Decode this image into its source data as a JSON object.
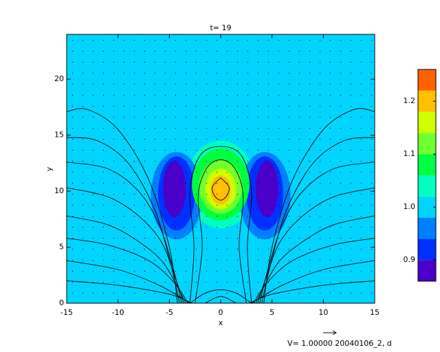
{
  "chart_data": {
    "type": "contour",
    "title": "t= 19",
    "xlabel": "x",
    "ylabel": "y",
    "footer": "V= 1.00000 20040106_2, d",
    "xlim": [
      -15,
      15
    ],
    "ylim": [
      0,
      24
    ],
    "xticks": [
      -15,
      -10,
      -5,
      0,
      5,
      10,
      15
    ],
    "yticks": [
      0,
      5,
      10,
      15,
      20
    ],
    "background_value": 1.0,
    "regions": [
      {
        "x": 0,
        "y": 10.6,
        "rx": 3.4,
        "ry": 3.9,
        "value": 1.04
      },
      {
        "x": -4.3,
        "y": 9.6,
        "rx": 2.5,
        "ry": 3.9,
        "value": 0.96
      },
      {
        "x": 4.3,
        "y": 9.6,
        "rx": 2.5,
        "ry": 3.9,
        "value": 0.96
      },
      {
        "x": -4.3,
        "y": 9.8,
        "rx": 1.8,
        "ry": 3.3,
        "value": 0.92
      },
      {
        "x": 4.3,
        "y": 9.8,
        "rx": 1.8,
        "ry": 3.3,
        "value": 0.92
      },
      {
        "x": -4.5,
        "y": 10.2,
        "rx": 1.1,
        "ry": 2.5,
        "value": 0.88
      },
      {
        "x": 4.5,
        "y": 10.2,
        "rx": 1.1,
        "ry": 2.5,
        "value": 0.88
      },
      {
        "x": 0,
        "y": 10.6,
        "rx": 2.8,
        "ry": 3.2,
        "value": 1.08
      },
      {
        "x": 0,
        "y": 10.4,
        "rx": 2.1,
        "ry": 2.4,
        "value": 1.12
      },
      {
        "x": 0,
        "y": 10.2,
        "rx": 1.5,
        "ry": 1.8,
        "value": 1.16
      },
      {
        "x": 0,
        "y": 10.1,
        "rx": 1.0,
        "ry": 1.3,
        "value": 1.2
      }
    ],
    "field_lines": [
      {
        "x": [
          -15,
          -13,
          -10,
          -7,
          -5,
          -4.2
        ],
        "y": [
          17.1,
          17.3,
          15.5,
          11,
          5,
          0
        ]
      },
      {
        "x": [
          -15,
          -12,
          -9,
          -6.5,
          -5,
          -4
        ],
        "y": [
          14.8,
          14.5,
          12.5,
          8.5,
          4,
          0
        ]
      },
      {
        "x": [
          -15,
          -11,
          -8,
          -6,
          -4.6,
          -3.8
        ],
        "y": [
          12.6,
          12,
          10,
          7,
          3,
          0
        ]
      },
      {
        "x": [
          -15,
          -11,
          -8,
          -5.8,
          -4.5,
          -3.6
        ],
        "y": [
          10.3,
          9.5,
          7.8,
          5.5,
          2.5,
          0
        ]
      },
      {
        "x": [
          -15,
          -11,
          -8,
          -5.5,
          -3.4
        ],
        "y": [
          7.8,
          7,
          5.5,
          3.5,
          0
        ]
      },
      {
        "x": [
          -15,
          -11,
          -7,
          -4.5,
          -3.2
        ],
        "y": [
          5.8,
          5.2,
          3.8,
          1.8,
          0
        ]
      },
      {
        "x": [
          -15,
          -10,
          -6,
          -3
        ],
        "y": [
          3.8,
          3,
          1.6,
          0
        ]
      },
      {
        "x": [
          -15,
          -10,
          -5,
          -2.8
        ],
        "y": [
          2,
          1.6,
          0.8,
          0
        ]
      },
      {
        "x": [
          15,
          13,
          10,
          7,
          5,
          4.2
        ],
        "y": [
          17.1,
          17.3,
          15.5,
          11,
          5,
          0
        ]
      },
      {
        "x": [
          15,
          12,
          9,
          6.5,
          5,
          4
        ],
        "y": [
          14.8,
          14.5,
          12.5,
          8.5,
          4,
          0
        ]
      },
      {
        "x": [
          15,
          11,
          8,
          6,
          4.6,
          3.8
        ],
        "y": [
          12.6,
          12,
          10,
          7,
          3,
          0
        ]
      },
      {
        "x": [
          15,
          11,
          8,
          5.8,
          4.5,
          3.6
        ],
        "y": [
          10.3,
          9.5,
          7.8,
          5.5,
          2.5,
          0
        ]
      },
      {
        "x": [
          15,
          11,
          8,
          5.5,
          3.4
        ],
        "y": [
          7.8,
          7,
          5.5,
          3.5,
          0
        ]
      },
      {
        "x": [
          15,
          11,
          7,
          4.5,
          3.2
        ],
        "y": [
          5.8,
          5.2,
          3.8,
          1.8,
          0
        ]
      },
      {
        "x": [
          15,
          10,
          6,
          3
        ],
        "y": [
          3.8,
          3,
          1.6,
          0
        ]
      },
      {
        "x": [
          15,
          10,
          5,
          2.8
        ],
        "y": [
          2,
          1.6,
          0.8,
          0
        ]
      },
      {
        "x": [
          -3,
          -2.6,
          -3,
          -2,
          0,
          2,
          3,
          2.6,
          3
        ],
        "y": [
          0,
          5,
          10,
          13.2,
          14,
          13.2,
          10,
          5,
          0
        ]
      },
      {
        "x": [
          -2.5,
          -1.8,
          -2.2,
          -1.4,
          0,
          1.4,
          2.2,
          1.8,
          2.5
        ],
        "y": [
          0,
          5,
          9.5,
          12,
          12.8,
          12,
          9.5,
          5,
          0
        ]
      },
      {
        "x": [
          0,
          0.8,
          0.6,
          0,
          -0.6,
          -0.8,
          0
        ],
        "y": [
          11.2,
          10.4,
          9.6,
          9.2,
          9.6,
          10.4,
          11.2
        ]
      },
      {
        "x": [
          -3,
          -1.5,
          0,
          1.5,
          3
        ],
        "y": [
          0,
          0.9,
          1.2,
          0.9,
          0
        ]
      },
      {
        "x": [
          -1.5,
          0,
          1.5
        ],
        "y": [
          0,
          0.6,
          0
        ]
      }
    ],
    "colorbar": {
      "lim": [
        0.86,
        1.26
      ],
      "levels": [
        0.86,
        0.9,
        0.94,
        0.98,
        1.02,
        1.06,
        1.1,
        1.14,
        1.18,
        1.22,
        1.26
      ],
      "colors": [
        "#4a00c8",
        "#0030ff",
        "#0080ff",
        "#00d4ff",
        "#00ffc0",
        "#00ff40",
        "#70ff30",
        "#d0ff00",
        "#ffc000",
        "#ff6000"
      ],
      "ticks": [
        0.9,
        {
          "value": 1.0,
          "label": "1.0"
        },
        1.1,
        1.2
      ]
    }
  }
}
